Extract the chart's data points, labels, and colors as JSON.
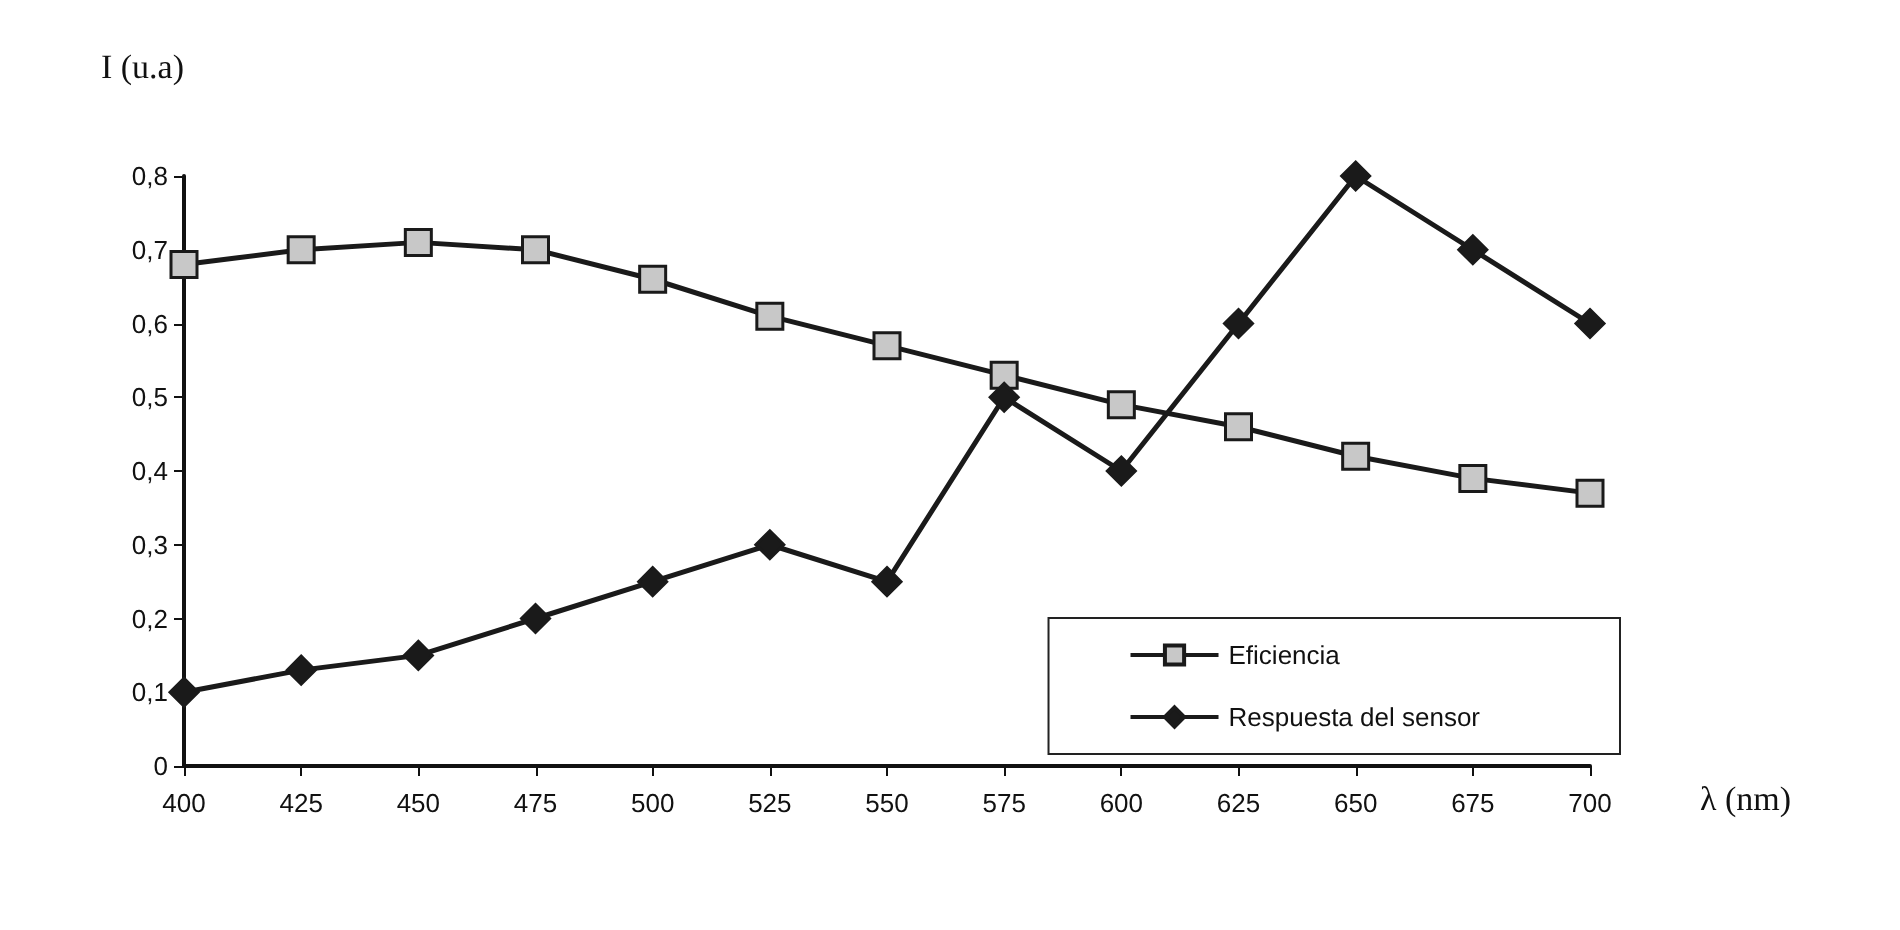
{
  "chart_data": {
    "type": "line",
    "ylabel": "I (u.a)",
    "xlabel": "λ (nm)",
    "x": [
      400,
      425,
      450,
      475,
      500,
      525,
      550,
      575,
      600,
      625,
      650,
      675,
      700
    ],
    "xlim": [
      400,
      700
    ],
    "xticks": [
      400,
      425,
      450,
      475,
      500,
      525,
      550,
      575,
      600,
      625,
      650,
      675,
      700
    ],
    "ylim": [
      0,
      0.8
    ],
    "yticks": [
      0,
      {
        "value": 0.1,
        "label": "0,1"
      },
      {
        "value": 0.2,
        "label": "0,2"
      },
      {
        "value": 0.3,
        "label": "0,3"
      },
      {
        "value": 0.4,
        "label": "0,4"
      },
      {
        "value": 0.5,
        "label": "0,5"
      },
      {
        "value": 0.6,
        "label": "0,6"
      },
      {
        "value": 0.7,
        "label": "0,7"
      },
      {
        "value": 0.8,
        "label": "0,8"
      }
    ],
    "series": [
      {
        "name": "Eficiencia",
        "color": "#1a1a1a",
        "marker": "square",
        "values": [
          0.68,
          0.7,
          0.71,
          0.7,
          0.66,
          0.61,
          0.57,
          0.53,
          0.49,
          0.46,
          0.42,
          0.39,
          0.37
        ]
      },
      {
        "name": "Respuesta del sensor",
        "color": "#1a1a1a",
        "marker": "diamond",
        "values": [
          0.1,
          0.13,
          0.15,
          0.2,
          0.25,
          0.3,
          0.25,
          0.5,
          0.4,
          0.6,
          0.8,
          0.7,
          0.6
        ]
      }
    ],
    "grid": false,
    "legend": "bottom right",
    "line_style": "solid"
  }
}
